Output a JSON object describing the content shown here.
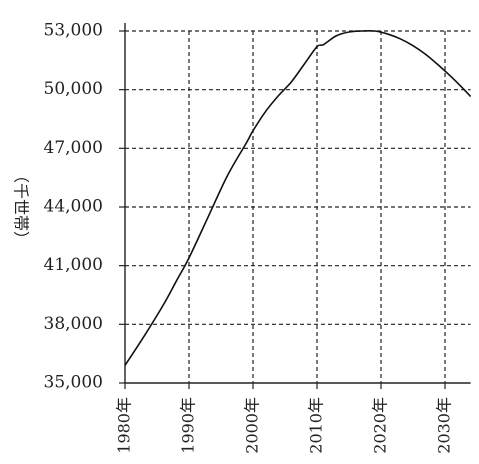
{
  "chart_data": {
    "type": "line",
    "ylabel": "（千世帯）",
    "x_tick_labels": [
      "1980年",
      "1990年",
      "2000年",
      "2010年",
      "2020年",
      "2030年"
    ],
    "y_tick_labels": [
      "35,000",
      "38,000",
      "41,000",
      "44,000",
      "47,000",
      "50,000",
      "53,000"
    ],
    "y_ticks": [
      35000,
      38000,
      41000,
      44000,
      47000,
      50000,
      53000
    ],
    "x_ticks": [
      1980,
      1990,
      2000,
      2010,
      2020,
      2030
    ],
    "xlim": [
      1980,
      2034
    ],
    "ylim": [
      35000,
      53000
    ],
    "grid": true,
    "series": [
      {
        "x": [
          1980,
          1983,
          1986,
          1988,
          1990,
          1993,
          1996,
          1999,
          2000,
          2002,
          2004,
          2006,
          2008,
          2010,
          2011,
          2013,
          2015,
          2017,
          2019,
          2021,
          2023,
          2025,
          2027,
          2029,
          2031,
          2033,
          2034
        ],
        "values": [
          35900,
          37400,
          39000,
          40200,
          41400,
          43500,
          45600,
          47300,
          47900,
          48900,
          49700,
          50400,
          51300,
          52200,
          52300,
          52750,
          52950,
          53000,
          53000,
          52850,
          52600,
          52250,
          51800,
          51250,
          50650,
          50000,
          49650
        ]
      }
    ]
  }
}
